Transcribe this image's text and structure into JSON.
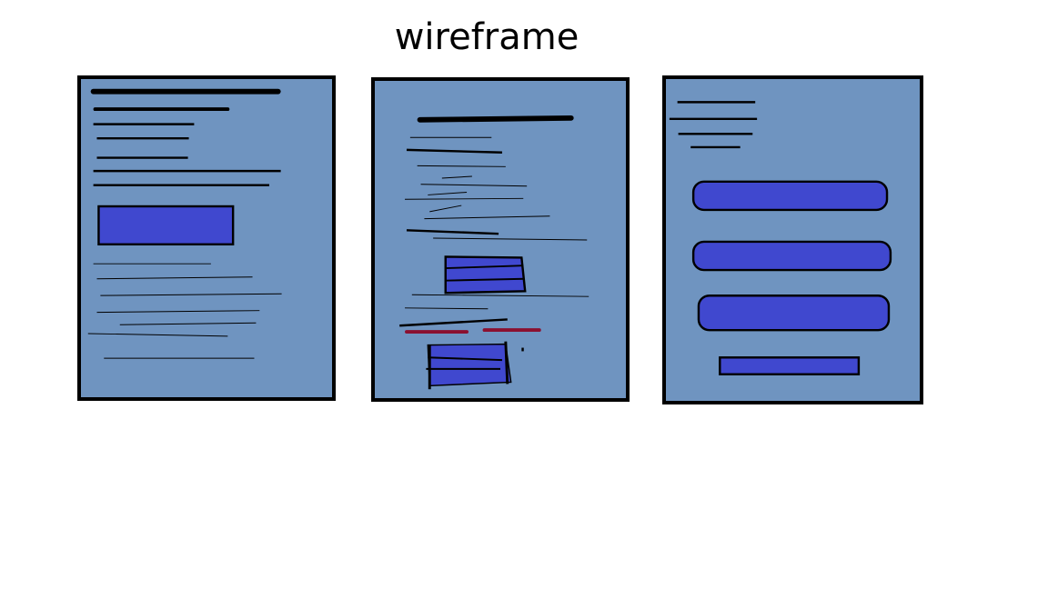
{
  "title": "wireframe",
  "colors": {
    "panel_fill": "#6f94c0",
    "element_fill": "#4048cf",
    "line": "#000000",
    "accent_line": "#8b1030"
  },
  "panels": [
    {
      "name": "wireframe-1"
    },
    {
      "name": "wireframe-2"
    },
    {
      "name": "wireframe-3"
    }
  ]
}
